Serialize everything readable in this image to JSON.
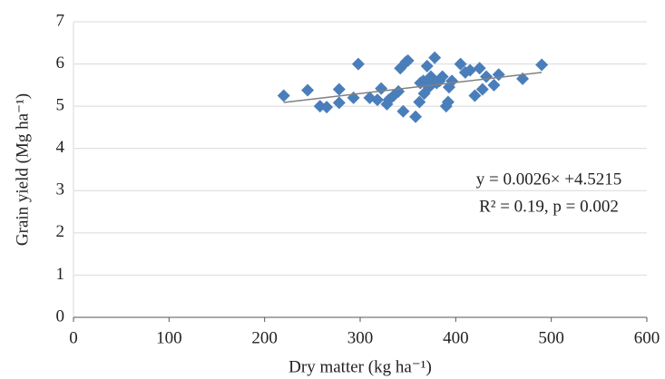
{
  "chart_data": {
    "type": "scatter",
    "xlabel": "Dry matter (kg ha⁻¹)",
    "ylabel": "Grain yield (Mg ha⁻¹)",
    "annotations": [
      "y = 0.0026× +4.5215",
      "R² = 0.19, p = 0.002"
    ],
    "xlim": [
      0,
      600
    ],
    "xticks": [
      0,
      100,
      200,
      300,
      400,
      500,
      600
    ],
    "ylim": [
      0,
      7
    ],
    "yticks": [
      0,
      1,
      2,
      3,
      4,
      5,
      6,
      7
    ],
    "grid": true,
    "color": "#4a7ebb",
    "trend_color": "#808080",
    "x": [
      220,
      245,
      258,
      265,
      278,
      278,
      293,
      298,
      310,
      318,
      322,
      328,
      330,
      335,
      340,
      342,
      345,
      348,
      350,
      358,
      362,
      363,
      366,
      367,
      370,
      372,
      374,
      378,
      380,
      383,
      386,
      390,
      392,
      393,
      396,
      405,
      410,
      415,
      420,
      425,
      428,
      432,
      440,
      445,
      470,
      490
    ],
    "y": [
      5.25,
      5.38,
      5.0,
      4.98,
      5.08,
      5.4,
      5.2,
      6.0,
      5.2,
      5.15,
      5.42,
      5.05,
      5.15,
      5.25,
      5.35,
      5.9,
      4.88,
      6.05,
      6.08,
      4.75,
      5.1,
      5.55,
      5.6,
      5.3,
      5.95,
      5.45,
      5.7,
      6.15,
      5.55,
      5.6,
      5.7,
      5.0,
      5.1,
      5.45,
      5.6,
      6.0,
      5.8,
      5.85,
      5.25,
      5.9,
      5.4,
      5.7,
      5.5,
      5.75,
      5.65,
      5.98
    ],
    "trendline": {
      "x": [
        220,
        490
      ],
      "y": [
        5.09,
        5.8
      ]
    }
  }
}
